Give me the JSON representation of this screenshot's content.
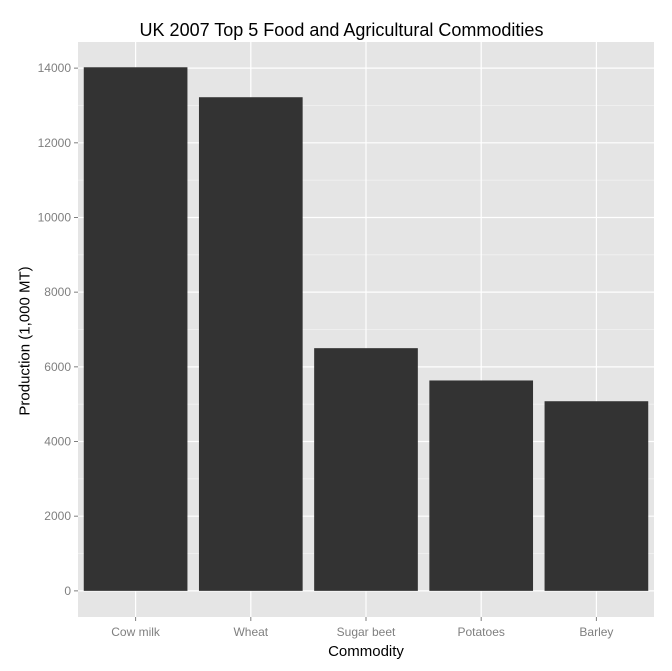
{
  "chart_data": {
    "type": "bar",
    "title": "UK 2007 Top 5 Food and Agricultural Commodities",
    "xlabel": "Commodity",
    "ylabel": "Production (1,000 MT)",
    "categories": [
      "Cow milk",
      "Wheat",
      "Sugar beet",
      "Potatoes",
      "Barley"
    ],
    "values": [
      14023,
      13221,
      6500,
      5635,
      5079
    ],
    "ylim": [
      -700,
      14700
    ],
    "yticks": [
      0,
      2000,
      4000,
      6000,
      8000,
      10000,
      12000,
      14000
    ],
    "ytick_labels": [
      "0",
      "2000",
      "4000",
      "6000",
      "8000",
      "10000",
      "12000",
      "14000"
    ],
    "grid": true,
    "legend": "none",
    "colors": {
      "bar": "#333333",
      "panel": "#e5e5e5",
      "grid_major": "#ffffff",
      "grid_minor": "#f2f2f2",
      "tick_label": "#7f7f7f"
    }
  }
}
